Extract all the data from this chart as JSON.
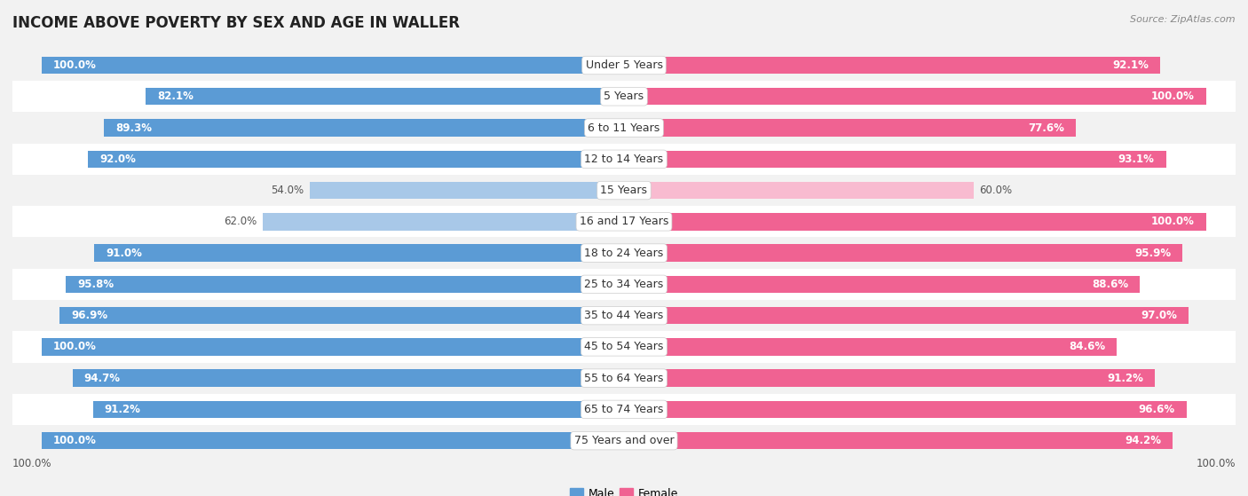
{
  "title": "INCOME ABOVE POVERTY BY SEX AND AGE IN WALLER",
  "source": "Source: ZipAtlas.com",
  "categories": [
    "Under 5 Years",
    "5 Years",
    "6 to 11 Years",
    "12 to 14 Years",
    "15 Years",
    "16 and 17 Years",
    "18 to 24 Years",
    "25 to 34 Years",
    "35 to 44 Years",
    "45 to 54 Years",
    "55 to 64 Years",
    "65 to 74 Years",
    "75 Years and over"
  ],
  "male_values": [
    100.0,
    82.1,
    89.3,
    92.0,
    54.0,
    62.0,
    91.0,
    95.8,
    96.9,
    100.0,
    94.7,
    91.2,
    100.0
  ],
  "female_values": [
    92.1,
    100.0,
    77.6,
    93.1,
    60.0,
    100.0,
    95.9,
    88.6,
    97.0,
    84.6,
    91.2,
    96.6,
    94.2
  ],
  "male_color_full": "#5b9bd5",
  "male_color_light": "#a8c8e8",
  "female_color_full": "#f06292",
  "female_color_light": "#f8bbd0",
  "light_threshold": 70,
  "bar_height": 0.55,
  "row_colors": [
    "#f2f2f2",
    "#ffffff"
  ],
  "title_fontsize": 12,
  "label_fontsize": 9,
  "value_fontsize": 8.5,
  "legend_fontsize": 9,
  "source_fontsize": 8,
  "male_label": "Male",
  "female_label": "Female"
}
